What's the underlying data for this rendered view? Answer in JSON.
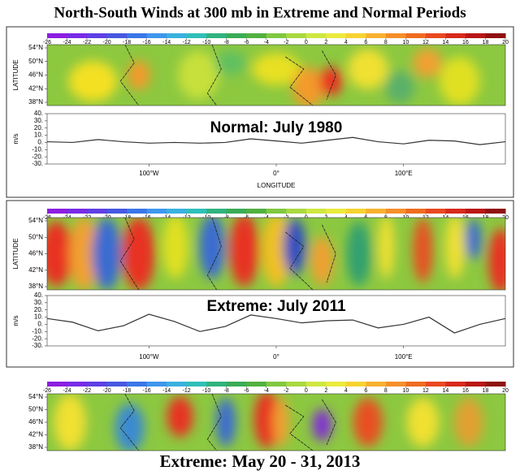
{
  "title": "North-South Winds at 300 mb in Extreme and Normal Periods",
  "panels": [
    {
      "colorbar_ticks": [
        -26,
        -24,
        -22,
        -20,
        -18,
        -16,
        -14,
        -12,
        -10,
        -8,
        -6,
        -4,
        -2,
        0,
        2,
        4,
        6,
        8,
        10,
        12,
        14,
        16,
        18,
        20
      ],
      "ylabel": "LATITUDE",
      "lat_ticks": [
        {
          "value": 54,
          "label": "54°N"
        },
        {
          "value": 50,
          "label": "50°N"
        },
        {
          "value": 46,
          "label": "46°N"
        },
        {
          "value": 42,
          "label": "42°N"
        },
        {
          "value": 38,
          "label": "38°N"
        }
      ],
      "line": {
        "ylabel": "m/s",
        "ylim": [
          -30,
          40
        ],
        "yticks": [
          {
            "value": 40,
            "label": "40."
          },
          {
            "value": 30,
            "label": "30."
          },
          {
            "value": 20,
            "label": "20."
          },
          {
            "value": 10,
            "label": "10."
          },
          {
            "value": 0,
            "label": "0."
          },
          {
            "value": -10,
            "label": "-10."
          },
          {
            "value": -20,
            "label": "-20."
          },
          {
            "value": -30,
            "label": "-30."
          }
        ],
        "lon": [
          -180,
          -160,
          -140,
          -120,
          -100,
          -80,
          -60,
          -40,
          -20,
          0,
          20,
          40,
          60,
          80,
          100,
          120,
          140,
          160,
          180
        ],
        "values": [
          1,
          0,
          4,
          1,
          -1,
          0,
          -1,
          0,
          5,
          2,
          -1,
          3,
          7,
          1,
          -2,
          3,
          2,
          -3,
          1
        ]
      },
      "xticks": [
        {
          "value": -100,
          "label": "100°W"
        },
        {
          "value": 0,
          "label": "0°"
        },
        {
          "value": 100,
          "label": "100°E"
        }
      ],
      "xlabel": "LONGITUDE",
      "annotation": "Normal: July 1980"
    },
    {
      "colorbar_ticks": [
        -26,
        -24,
        -22,
        -20,
        -18,
        -16,
        -14,
        -12,
        -10,
        -8,
        -6,
        -4,
        -2,
        0,
        2,
        4,
        6,
        8,
        10,
        12,
        14,
        16,
        18,
        20
      ],
      "ylabel": "LATITUDE",
      "lat_ticks": [
        {
          "value": 54,
          "label": "54°N"
        },
        {
          "value": 50,
          "label": "50°N"
        },
        {
          "value": 46,
          "label": "46°N"
        },
        {
          "value": 42,
          "label": "42°N"
        },
        {
          "value": 38,
          "label": "38°N"
        }
      ],
      "line": {
        "ylabel": "m/s",
        "ylim": [
          -30,
          40
        ],
        "yticks": [
          {
            "value": 40,
            "label": "40."
          },
          {
            "value": 30,
            "label": "30."
          },
          {
            "value": 20,
            "label": "20."
          },
          {
            "value": 10,
            "label": "10."
          },
          {
            "value": 0,
            "label": "0."
          },
          {
            "value": -10,
            "label": "-10."
          },
          {
            "value": -20,
            "label": "-20."
          },
          {
            "value": -30,
            "label": "-30."
          }
        ],
        "lon": [
          -180,
          -160,
          -140,
          -120,
          -100,
          -80,
          -60,
          -40,
          -20,
          0,
          20,
          40,
          60,
          80,
          100,
          120,
          140,
          160,
          180
        ],
        "values": [
          8,
          3,
          -9,
          -2,
          14,
          4,
          -10,
          -3,
          13,
          8,
          2,
          5,
          6,
          -5,
          0,
          10,
          -12,
          0,
          8
        ]
      },
      "xticks": [
        {
          "value": -100,
          "label": "100°W"
        },
        {
          "value": 0,
          "label": "0°"
        },
        {
          "value": 100,
          "label": "100°E"
        }
      ],
      "annotation": "Extreme: July 2011"
    },
    {
      "colorbar_ticks": [
        -26,
        -24,
        -22,
        -20,
        -18,
        -16,
        -14,
        -12,
        -10,
        -8,
        -6,
        -4,
        -2,
        0,
        2,
        4,
        6,
        8,
        10,
        12,
        14,
        16,
        18,
        20
      ],
      "lat_ticks": [
        {
          "value": 54,
          "label": "54°N"
        },
        {
          "value": 50,
          "label": "50°N"
        },
        {
          "value": 46,
          "label": "46°N"
        },
        {
          "value": 42,
          "label": "42°N"
        },
        {
          "value": 38,
          "label": "38°N"
        }
      ],
      "caption": "Extreme: May 20 - 31, 2013"
    }
  ]
}
